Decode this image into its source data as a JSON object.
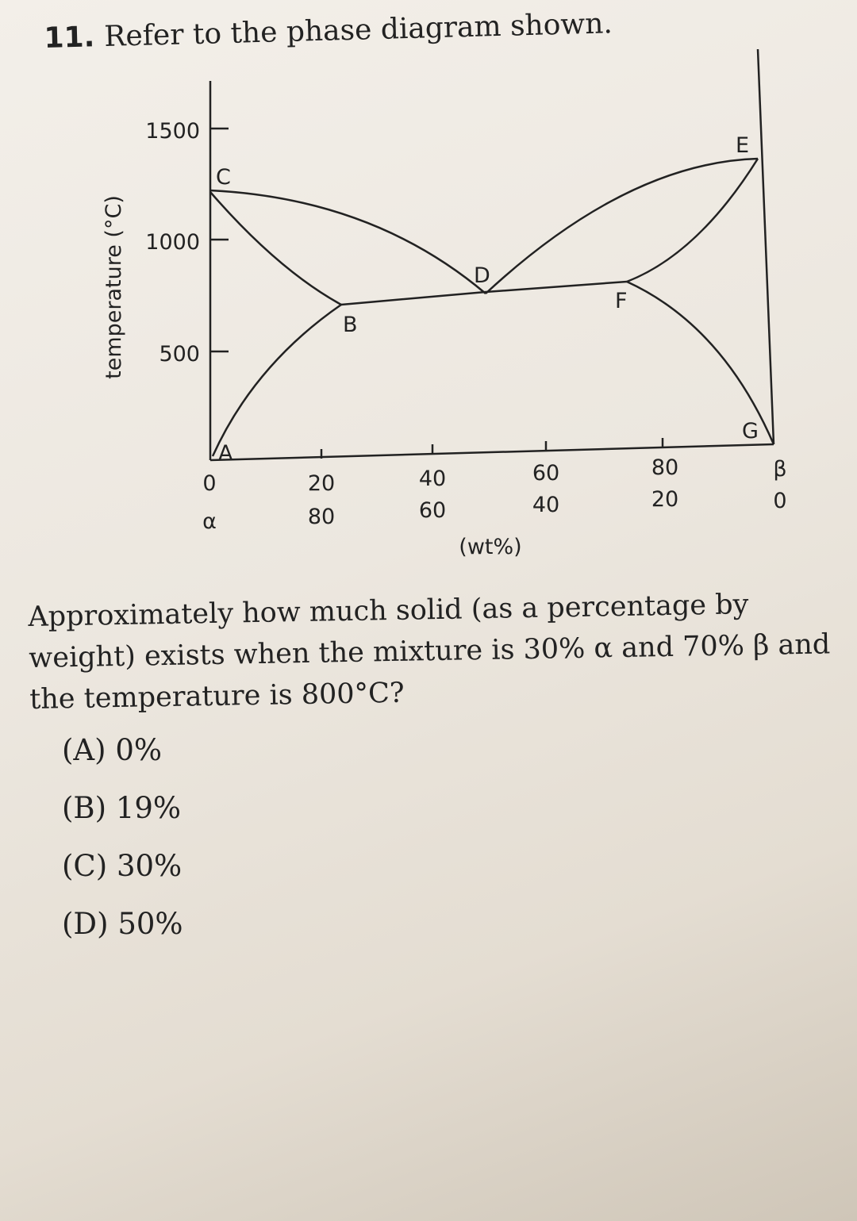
{
  "question": {
    "number": "11.",
    "intro": "Refer to the phase diagram shown.",
    "text": "Approximately how much solid (as a percentage by weight) exists when the mixture is 30% α and 70% β and the temperature is 800°C?",
    "options": [
      {
        "label": "(A)",
        "value": "0%"
      },
      {
        "label": "(B)",
        "value": "19%"
      },
      {
        "label": "(C)",
        "value": "30%"
      },
      {
        "label": "(D)",
        "value": "50%"
      }
    ]
  },
  "diagram": {
    "ylabel": "temperature (°C)",
    "yticks": [
      "1500",
      "1000",
      "500"
    ],
    "x_beta": [
      "20",
      "40",
      "60",
      "80"
    ],
    "x_alpha": [
      "80",
      "60",
      "40",
      "20"
    ],
    "left_beta": "0",
    "left_alpha": "α",
    "right_beta": "β",
    "right_alpha": "0",
    "xlabel": "(wt%)",
    "points": [
      "A",
      "B",
      "C",
      "D",
      "E",
      "F",
      "G"
    ]
  }
}
